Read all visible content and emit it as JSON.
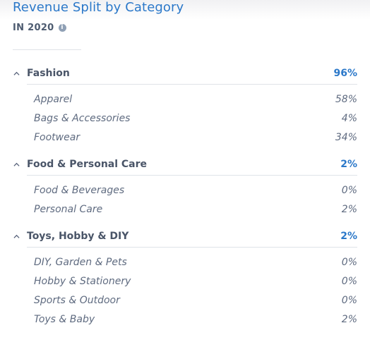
{
  "title": "Revenue Split by Category",
  "subtitle": "IN 2020",
  "info_icon_glyph": "i",
  "groups": [
    {
      "name": "Fashion",
      "percent": "96%",
      "items": [
        {
          "name": "Apparel",
          "percent": "58%"
        },
        {
          "name": "Bags & Accessories",
          "percent": "4%"
        },
        {
          "name": "Footwear",
          "percent": "34%"
        }
      ]
    },
    {
      "name": "Food & Personal Care",
      "percent": "2%",
      "items": [
        {
          "name": "Food & Beverages",
          "percent": "0%"
        },
        {
          "name": "Personal Care",
          "percent": "2%"
        }
      ]
    },
    {
      "name": "Toys, Hobby & DIY",
      "percent": "2%",
      "items": [
        {
          "name": "DIY, Garden & Pets",
          "percent": "0%"
        },
        {
          "name": "Hobby & Stationery",
          "percent": "0%"
        },
        {
          "name": "Sports & Outdoor",
          "percent": "0%"
        },
        {
          "name": "Toys & Baby",
          "percent": "2%"
        }
      ]
    }
  ],
  "colors": {
    "accent": "#2b78c9",
    "text": "#56617a",
    "divider": "#dfe3e8"
  }
}
